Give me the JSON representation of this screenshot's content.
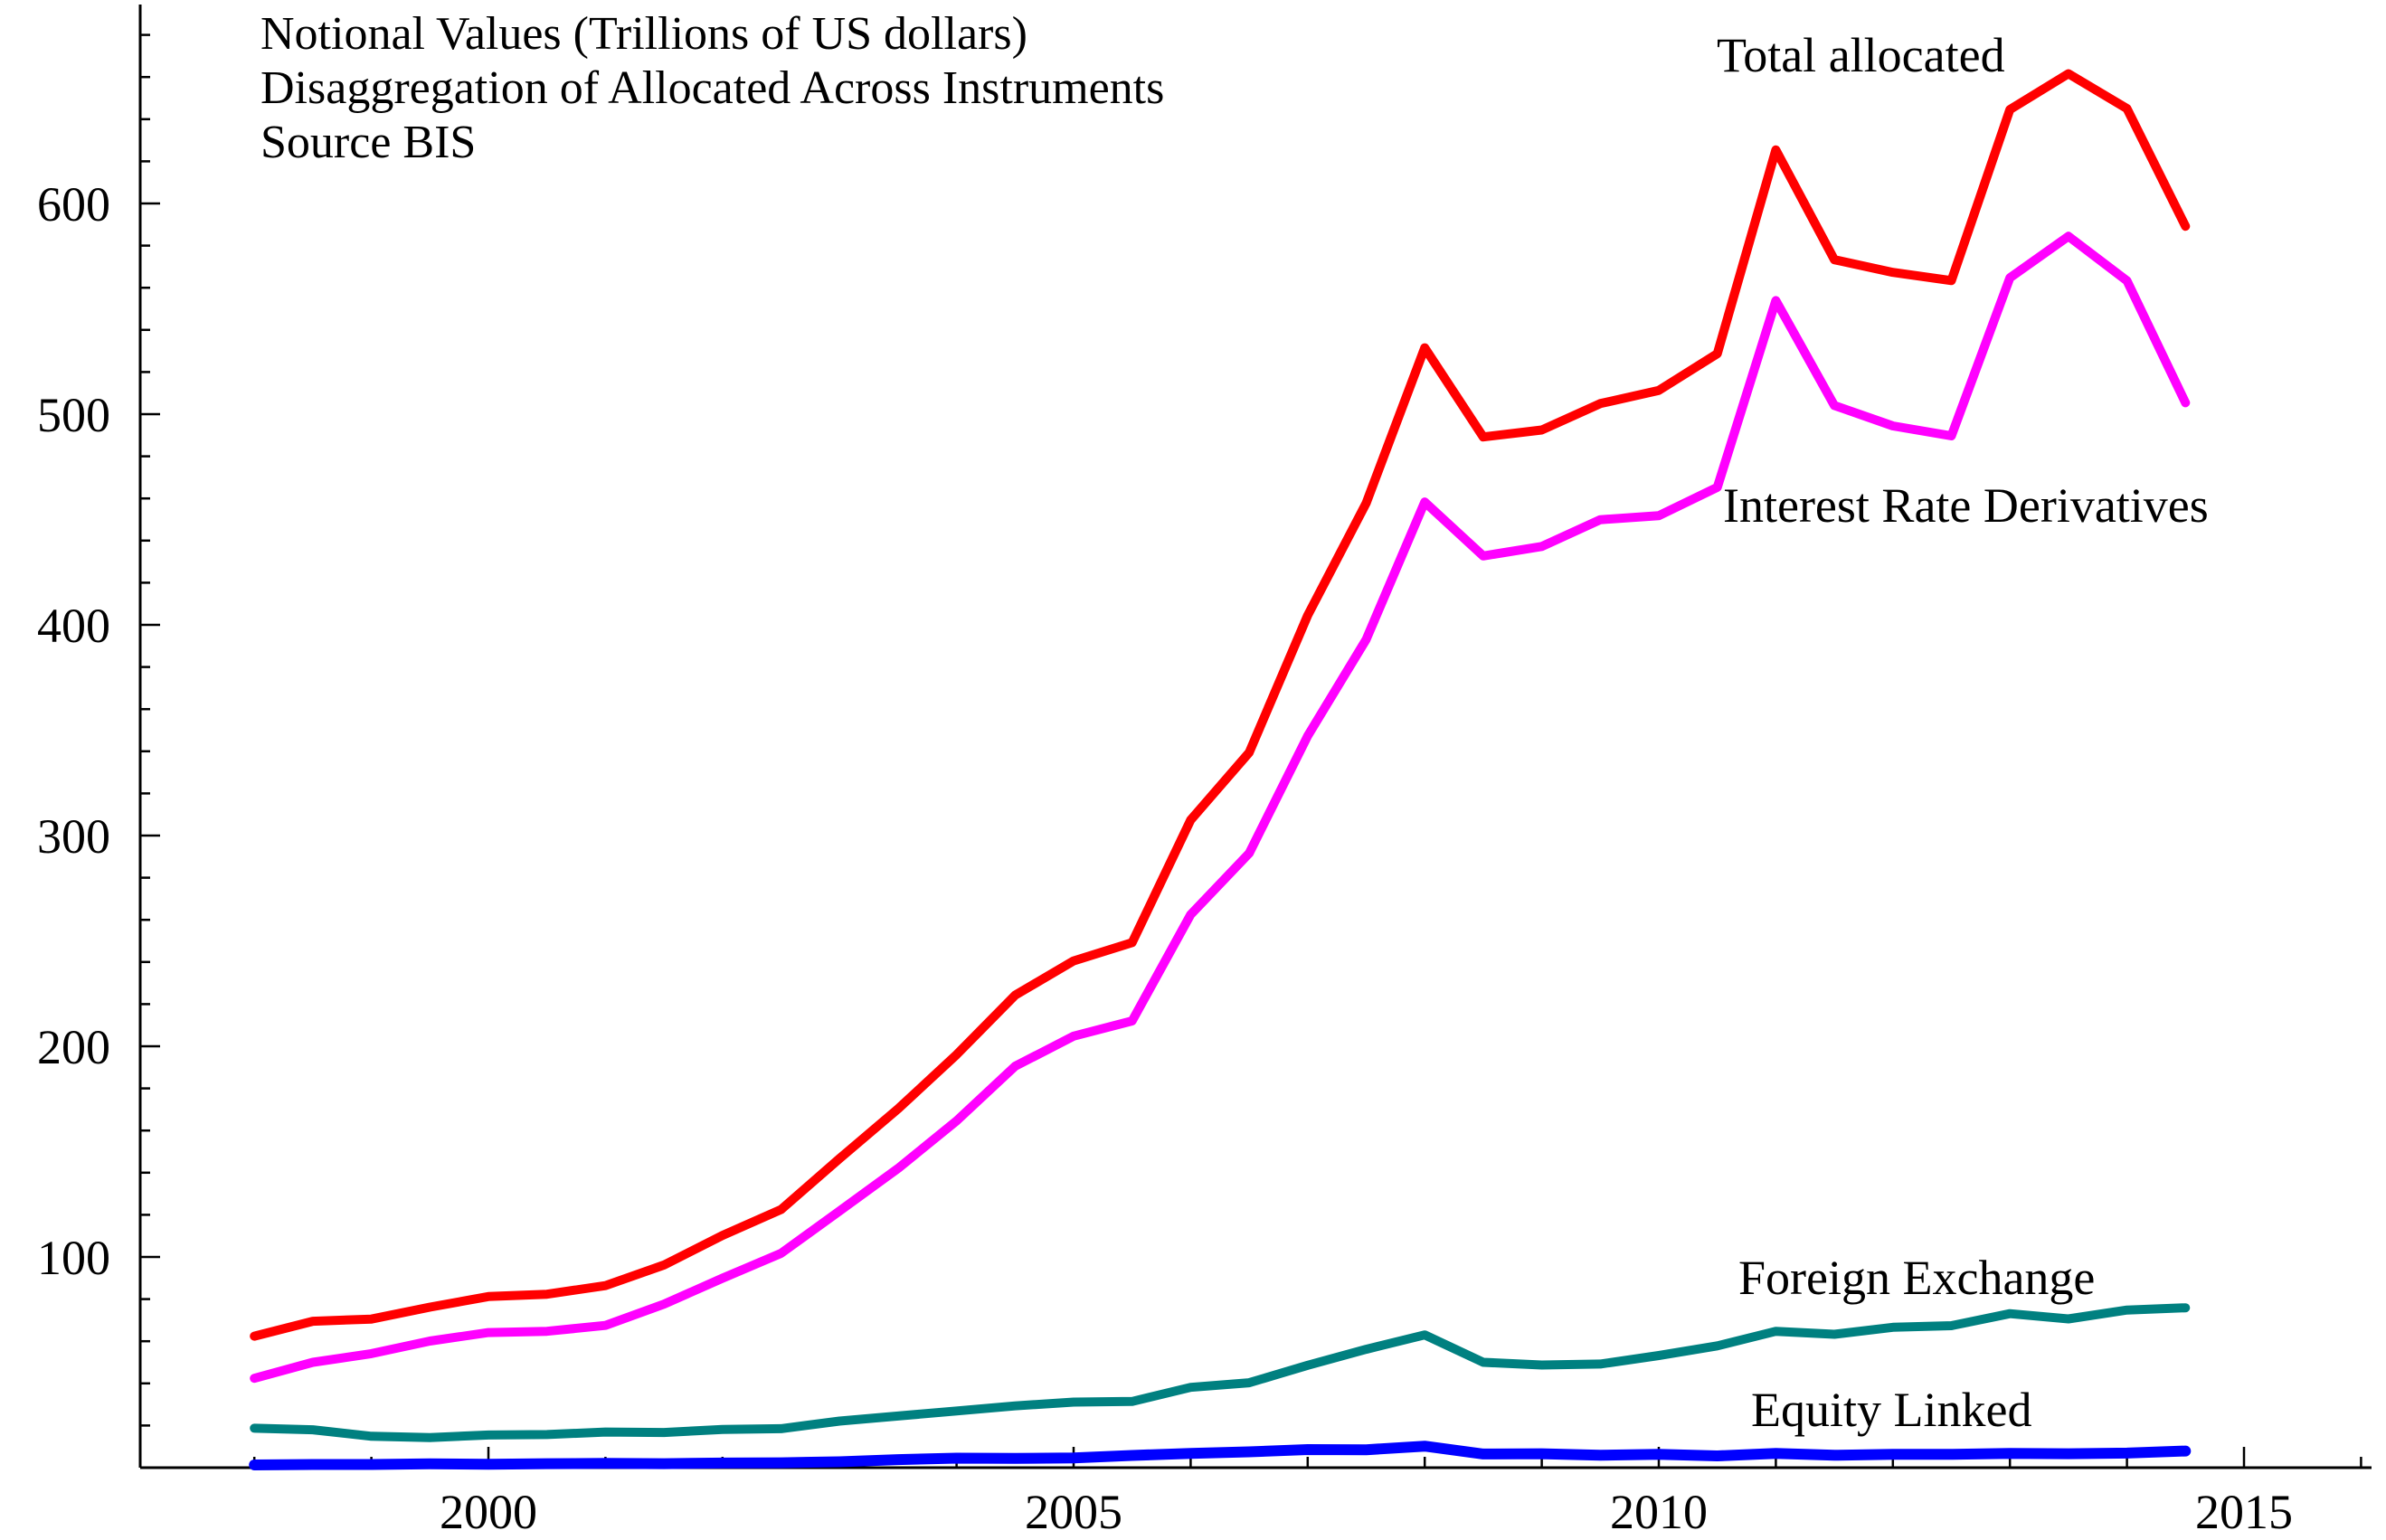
{
  "title": {
    "line1": "Notional Values (Trillions of US dollars)",
    "line2": "Disaggregation of Allocated Across Instruments",
    "line3": "Source BIS"
  },
  "series_labels": {
    "total": "Total allocated",
    "interest_rate": "Interest Rate Derivatives",
    "foreign_exchange": "Foreign Exchange",
    "equity": "Equity Linked"
  },
  "colors": {
    "total": "#ff0000",
    "interest_rate": "#ff00ff",
    "foreign_exchange": "#008080",
    "equity": "#0000ff",
    "axis": "#000000"
  },
  "chart_data": {
    "type": "line",
    "title": "Notional Values (Trillions of US dollars) — Disaggregation of Allocated Across Instruments (Source BIS)",
    "xlabel": "",
    "ylabel": "Trillions of US dollars",
    "x_start": 1998.0,
    "x_step": 0.5,
    "x_range": [
      1997.0,
      2016.1
    ],
    "ylim": [
      0,
      697
    ],
    "grid": false,
    "legend_position": "inline-annotations",
    "series": [
      {
        "name": "Total allocated",
        "color": "#ff0000",
        "stroke_width": 10,
        "values": [
          62.4,
          69.5,
          70.5,
          76.2,
          81.2,
          82.3,
          86.4,
          96.2,
          110.2,
          122.5,
          146.7,
          170.3,
          196.0,
          224.2,
          240.5,
          249.2,
          307.4,
          339.4,
          404.5,
          457.8,
          531.5,
          489.2,
          492.5,
          505.0,
          511.3,
          528.7,
          625.4,
          573.3,
          567.3,
          563.4,
          644.6,
          661.6,
          645.0,
          589.2
        ]
      },
      {
        "name": "Interest Rate Derivatives",
        "color": "#ff00ff",
        "stroke_width": 10,
        "values": [
          42.4,
          50.0,
          54.1,
          60.1,
          64.1,
          64.7,
          67.5,
          77.6,
          89.9,
          101.7,
          121.8,
          142.0,
          164.6,
          190.5,
          204.8,
          212.0,
          262.5,
          291.6,
          347.3,
          393.1,
          458.3,
          432.7,
          437.2,
          449.9,
          451.8,
          465.3,
          553.9,
          504.1,
          494.4,
          489.7,
          564.7,
          584.4,
          563.3,
          505.4
        ]
      },
      {
        "name": "Foreign Exchange",
        "color": "#008080",
        "stroke_width": 10,
        "values": [
          18.7,
          18.0,
          14.9,
          14.3,
          15.5,
          15.7,
          16.9,
          16.7,
          18.1,
          18.5,
          22.1,
          24.5,
          26.9,
          29.3,
          31.1,
          31.4,
          38.1,
          40.3,
          48.6,
          56.2,
          63.0,
          50.0,
          48.7,
          49.2,
          53.2,
          57.8,
          64.7,
          63.3,
          66.6,
          67.4,
          73.1,
          70.6,
          74.8,
          75.9
        ]
      },
      {
        "name": "Equity Linked",
        "color": "#0000ff",
        "stroke_width": 12,
        "values": [
          1.3,
          1.5,
          1.5,
          1.8,
          1.6,
          1.9,
          2.0,
          1.9,
          2.2,
          2.3,
          2.8,
          3.8,
          4.5,
          4.4,
          4.6,
          5.8,
          6.8,
          7.5,
          8.6,
          8.5,
          10.2,
          6.5,
          6.6,
          5.9,
          6.3,
          5.6,
          6.8,
          5.9,
          6.3,
          6.3,
          6.8,
          6.6,
          6.9,
          7.9
        ]
      }
    ],
    "axes": {
      "x": {
        "major_ticks": [
          2000,
          2005,
          2010,
          2015
        ],
        "major_tick_labels": [
          "2000",
          "2005",
          "2010",
          "2015"
        ],
        "minor_tick_start": 1998,
        "minor_tick_end": 2016,
        "minor_tick_step": 1
      },
      "y": {
        "major_ticks": [
          100,
          200,
          300,
          400,
          500,
          600
        ],
        "major_tick_labels": [
          "100",
          "200",
          "300",
          "400",
          "500",
          "600"
        ],
        "minor_tick_step": 20,
        "minor_tick_max": 680
      }
    }
  }
}
